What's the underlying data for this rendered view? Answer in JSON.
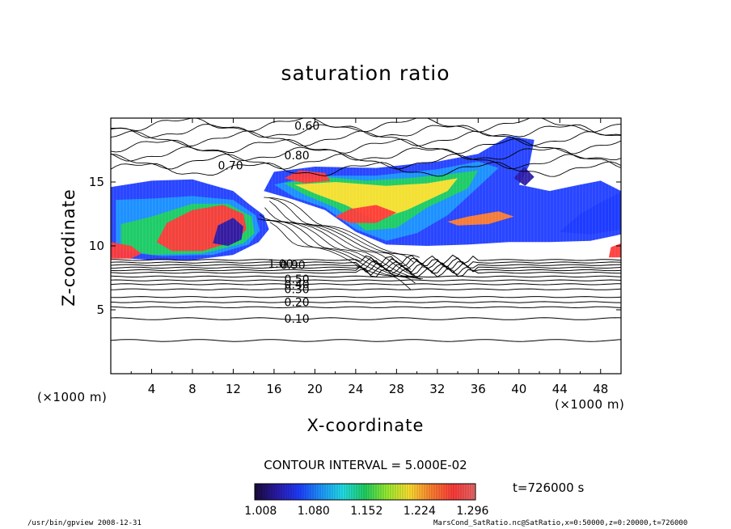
{
  "chart_data": {
    "type": "heatmap",
    "title": "saturation ratio",
    "xlabel": "X-coordinate",
    "ylabel": "Z-coordinate",
    "x_unit": "(×1000 m)",
    "y_unit": "(×1000 m)",
    "xlim": [
      0,
      50
    ],
    "ylim": [
      0,
      20
    ],
    "x_ticks": [
      "4",
      "8",
      "12",
      "16",
      "20",
      "24",
      "28",
      "32",
      "36",
      "40",
      "44",
      "48"
    ],
    "y_ticks": [
      "5",
      "10",
      "15"
    ],
    "contour_interval_text": "CONTOUR INTERVAL = 5.000E-02",
    "contour_labels": [
      "0.10",
      "0.20",
      "0.30",
      "0.40",
      "0.50",
      "0.60",
      "0.70",
      "0.80",
      "0.90",
      "1.00"
    ],
    "colorbar": {
      "range": [
        1.0,
        1.3
      ],
      "tick_labels": [
        "1.008",
        "1.080",
        "1.152",
        "1.224",
        "1.296"
      ],
      "colors": [
        "#1a0a3a",
        "#2a1aa8",
        "#1e3cff",
        "#1e96ff",
        "#22e0e8",
        "#20d060",
        "#9aee30",
        "#ffe030",
        "#ff8030",
        "#ff3a3a",
        "#e86a6a"
      ]
    },
    "time_label": "t=726000 s",
    "grid": false
  },
  "footer": {
    "left": "/usr/bin/gpview   2008-12-31",
    "right": "MarsCond_SatRatio.nc@SatRatio,x=0:50000,z=0:20000,t=726000"
  }
}
